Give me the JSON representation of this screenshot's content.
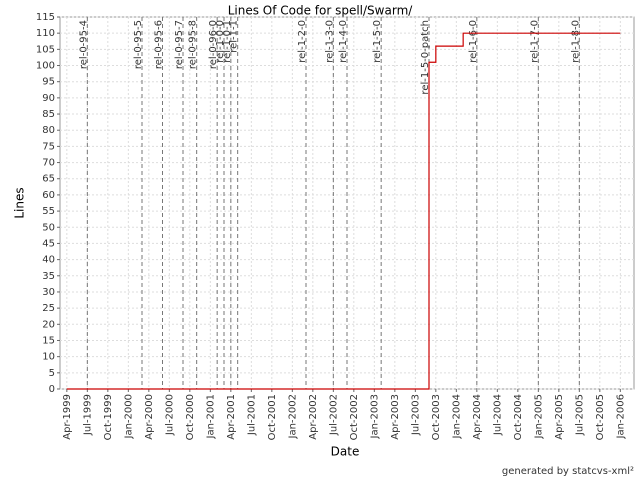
{
  "chart_data": {
    "type": "line",
    "step": true,
    "title": "Lines Of Code for spell/Swarm/",
    "x_label": "Date",
    "y_label": "Lines",
    "footer": "generated by statcvs-xml²",
    "grid": true,
    "xlim": [
      "1999-03",
      "2006-03"
    ],
    "xticks": [
      {
        "value": "1999-04",
        "label": "Apr-1999"
      },
      {
        "value": "1999-07",
        "label": "Jul-1999"
      },
      {
        "value": "1999-10",
        "label": "Oct-1999"
      },
      {
        "value": "2000-01",
        "label": "Jan-2000"
      },
      {
        "value": "2000-04",
        "label": "Apr-2000"
      },
      {
        "value": "2000-07",
        "label": "Jul-2000"
      },
      {
        "value": "2000-10",
        "label": "Oct-2000"
      },
      {
        "value": "2001-01",
        "label": "Jan-2001"
      },
      {
        "value": "2001-04",
        "label": "Apr-2001"
      },
      {
        "value": "2001-07",
        "label": "Jul-2001"
      },
      {
        "value": "2001-10",
        "label": "Oct-2001"
      },
      {
        "value": "2002-01",
        "label": "Jan-2002"
      },
      {
        "value": "2002-04",
        "label": "Apr-2002"
      },
      {
        "value": "2002-07",
        "label": "Jul-2002"
      },
      {
        "value": "2002-10",
        "label": "Oct-2002"
      },
      {
        "value": "2003-01",
        "label": "Jan-2003"
      },
      {
        "value": "2003-04",
        "label": "Apr-2003"
      },
      {
        "value": "2003-07",
        "label": "Jul-2003"
      },
      {
        "value": "2003-10",
        "label": "Oct-2003"
      },
      {
        "value": "2004-01",
        "label": "Jan-2004"
      },
      {
        "value": "2004-04",
        "label": "Apr-2004"
      },
      {
        "value": "2004-07",
        "label": "Jul-2004"
      },
      {
        "value": "2004-10",
        "label": "Oct-2004"
      },
      {
        "value": "2005-01",
        "label": "Jan-2005"
      },
      {
        "value": "2005-04",
        "label": "Apr-2005"
      },
      {
        "value": "2005-07",
        "label": "Jul-2005"
      },
      {
        "value": "2005-10",
        "label": "Oct-2005"
      },
      {
        "value": "2006-01",
        "label": "Jan-2006"
      }
    ],
    "ylim": [
      0,
      115
    ],
    "yticks": [
      0,
      5,
      10,
      15,
      20,
      25,
      30,
      35,
      40,
      45,
      50,
      55,
      60,
      65,
      70,
      75,
      80,
      85,
      90,
      95,
      100,
      105,
      110,
      115
    ],
    "series": [
      {
        "name": "Lines",
        "color": "#cc0000",
        "x": [
          "1999-04",
          "2003-09",
          "2003-09",
          "2003-10",
          "2004-02",
          "2006-01"
        ],
        "values": [
          0,
          92,
          101,
          106,
          110,
          110
        ]
      }
    ],
    "markers": [
      {
        "label": "rel-0-95-4",
        "x": "1999-07"
      },
      {
        "label": "rel-0-95-5",
        "x": "2000-03"
      },
      {
        "label": "rel-0-95-6",
        "x": "2000-06"
      },
      {
        "label": "rel-0-95-7",
        "x": "2000-09"
      },
      {
        "label": "rel-0-95-8",
        "x": "2000-11"
      },
      {
        "label": "rel-0-96-0",
        "x": "2001-02"
      },
      {
        "label": "rel-1-0-0",
        "x": "2001-03"
      },
      {
        "label": "rel-1-0-1",
        "x": "2001-04"
      },
      {
        "label": "rel-1-1",
        "x": "2001-05"
      },
      {
        "label": "rel-1-2-0",
        "x": "2002-03"
      },
      {
        "label": "rel-1-3-0",
        "x": "2002-07"
      },
      {
        "label": "rel-1-4-0",
        "x": "2002-09"
      },
      {
        "label": "rel-1-5-0",
        "x": "2003-02"
      },
      {
        "label": "rel-1-5-0-patch",
        "x": "2003-09"
      },
      {
        "label": "rel-1-6-0",
        "x": "2004-04"
      },
      {
        "label": "rel-1-7-0",
        "x": "2005-01"
      },
      {
        "label": "rel-1-8-0",
        "x": "2005-07"
      }
    ]
  }
}
